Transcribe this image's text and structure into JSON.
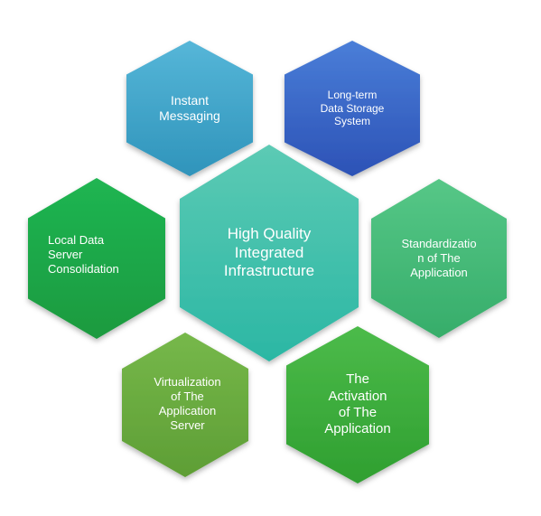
{
  "center": {
    "label": "High Quality\nIntegrated\nInfrastructure",
    "color_top": "#5ccab4",
    "color_bottom": "#2bb7a4"
  },
  "nodes": [
    {
      "id": "instant-messaging",
      "label": "Instant\nMessaging",
      "color_top": "#56b6d8",
      "color_bottom": "#2f94bb"
    },
    {
      "id": "long-term-storage",
      "label": "Long-term\nData Storage\nSystem",
      "color_top": "#4a7ed8",
      "color_bottom": "#2c52b6"
    },
    {
      "id": "standardization",
      "label": "Standardizatio\nn of The\nApplication",
      "color_top": "#56c787",
      "color_bottom": "#36ad6a"
    },
    {
      "id": "activation",
      "label": "The\nActivation\nof The\nApplication",
      "color_top": "#4cbb4a",
      "color_bottom": "#2f9f30"
    },
    {
      "id": "virtualization",
      "label": "Virtualization\nof The\nApplication\nServer",
      "color_top": "#76b84a",
      "color_bottom": "#5e9e35"
    },
    {
      "id": "local-consolidation",
      "label": "Local Data\nServer\nConsolidation",
      "color_top": "#20b552",
      "color_bottom": "#1a9a3f"
    }
  ]
}
